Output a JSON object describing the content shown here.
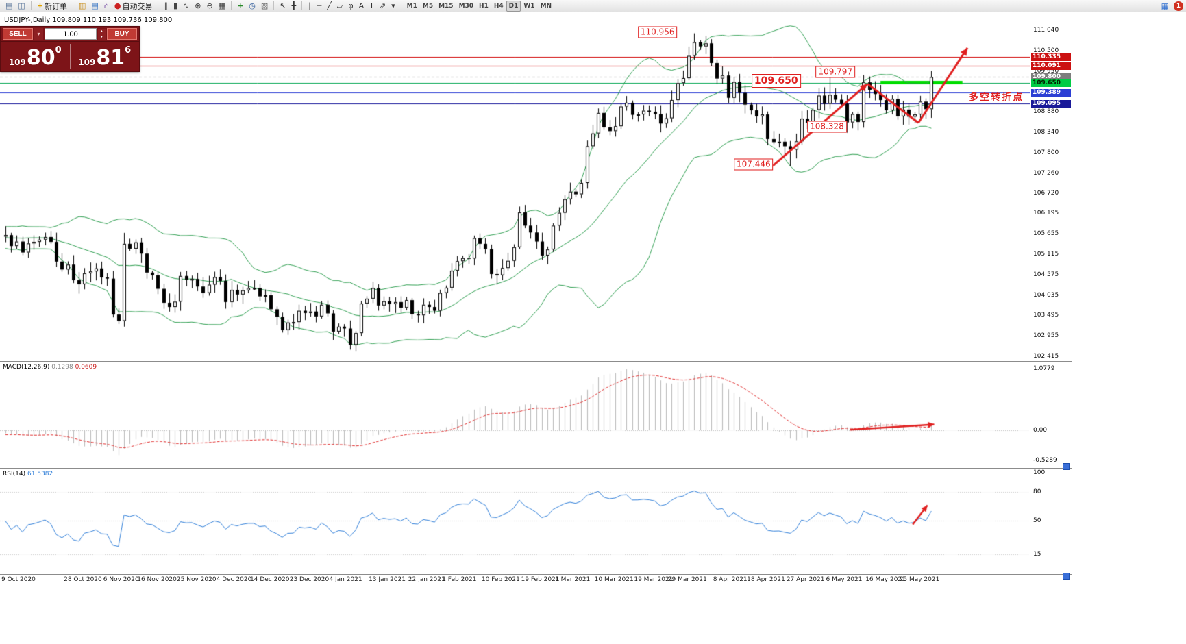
{
  "window": {
    "title": "USDJPY-,Daily  109.809 110.193 109.736 109.800"
  },
  "toolbar": {
    "groups": [
      {
        "buttons": [
          {
            "name": "new-chart-button",
            "glyph": "▤",
            "color": "#5f7a9d"
          },
          {
            "name": "profiles-button",
            "glyph": "◫",
            "color": "#5f7a9d"
          }
        ]
      },
      {
        "buttons": [
          {
            "name": "new-order-button",
            "glyph": "+",
            "glyph_color": "#e0a400",
            "label": "新订单"
          }
        ]
      },
      {
        "buttons": [
          {
            "name": "market-watch-button",
            "glyph": "▥",
            "color": "#c98f1e"
          },
          {
            "name": "data-window-button",
            "glyph": "▤",
            "color": "#3b77c4"
          },
          {
            "name": "navigator-button",
            "glyph": "⌂",
            "color": "#7a52a8"
          },
          {
            "name": "autotrading-button",
            "glyph": "●",
            "glyph_color": "#cc2222",
            "label": "自动交易"
          }
        ]
      },
      {
        "buttons": [
          {
            "name": "bar-chart-button",
            "glyph": "∥",
            "color": "#444444"
          },
          {
            "name": "candlestick-chart-button",
            "glyph": "▮",
            "color": "#444444"
          },
          {
            "name": "line-chart-button",
            "glyph": "∿",
            "color": "#444444"
          },
          {
            "name": "zoom-in-button",
            "glyph": "⊕",
            "color": "#444444"
          },
          {
            "name": "zoom-out-button",
            "glyph": "⊖",
            "color": "#444444"
          },
          {
            "name": "tile-windows-button",
            "glyph": "▦",
            "color": "#444444"
          }
        ]
      },
      {
        "buttons": [
          {
            "name": "add-indicator-button",
            "glyph": "+",
            "glyph_color": "#2a8a2a"
          },
          {
            "name": "time-period-button",
            "glyph": "◷",
            "color": "#35609e"
          },
          {
            "name": "template-button",
            "glyph": "▧",
            "color": "#666666"
          }
        ]
      },
      {
        "buttons": [
          {
            "name": "cursor-button",
            "glyph": "↖",
            "color": "#333333"
          },
          {
            "name": "crosshair-button",
            "glyph": "╋",
            "color": "#333333"
          }
        ]
      },
      {
        "buttons": [
          {
            "name": "vertical-line-button",
            "glyph": "∣",
            "color": "#333333"
          },
          {
            "name": "horizontal-line-button",
            "glyph": "─",
            "color": "#333333"
          },
          {
            "name": "trendline-button",
            "glyph": "╱",
            "color": "#333333"
          },
          {
            "name": "channel-button",
            "glyph": "▱",
            "color": "#333333"
          },
          {
            "name": "fibonacci-button",
            "glyph": "φ",
            "color": "#333333"
          },
          {
            "name": "text-button",
            "glyph": "A",
            "color": "#333333"
          },
          {
            "name": "label-button",
            "glyph": "T",
            "color": "#333333"
          },
          {
            "name": "arrows-tool-button",
            "glyph": "⇗",
            "color": "#333333"
          },
          {
            "name": "shapes-dropdown",
            "glyph": "▾",
            "color": "#333333"
          }
        ]
      },
      {
        "buttons": [
          {
            "name": "timeframe-m1",
            "label": "M1",
            "small": true
          },
          {
            "name": "timeframe-m5",
            "label": "M5",
            "small": true
          },
          {
            "name": "timeframe-m15",
            "label": "M15",
            "small": true
          },
          {
            "name": "timeframe-m30",
            "label": "M30",
            "small": true
          },
          {
            "name": "timeframe-h1",
            "label": "H1",
            "small": true
          },
          {
            "name": "timeframe-h4",
            "label": "H4",
            "small": true
          },
          {
            "name": "timeframe-d1",
            "label": "D1",
            "small": true,
            "active": true
          },
          {
            "name": "timeframe-w1",
            "label": "W1",
            "small": true
          },
          {
            "name": "timeframe-mn",
            "label": "MN",
            "small": true
          }
        ]
      }
    ],
    "right_buttons": [
      {
        "name": "layout-button",
        "glyph": "▦",
        "color": "#2f6fd0"
      },
      {
        "name": "notification-badge",
        "glyph": "1",
        "bg": "#d03020",
        "color": "#ffffff"
      }
    ]
  },
  "trade_panel": {
    "sell_label": "SELL",
    "buy_label": "BUY",
    "volume": "1.00",
    "sell_price_big": "109",
    "sell_price_main": "80",
    "sell_price_sup": "0",
    "buy_price_big": "109",
    "buy_price_main": "81",
    "buy_price_sup": "6"
  },
  "chart_data": [
    {
      "type": "candlestick",
      "symbol": "USDJPY-",
      "timeframe": "Daily",
      "ohlc_text": "109.809 110.193 109.736 109.800",
      "ylim": [
        102.29,
        111.51
      ],
      "y_ticks": [
        "111.040",
        "110.500",
        "109.950",
        "108.880",
        "108.340",
        "107.800",
        "107.260",
        "106.720",
        "106.195",
        "105.655",
        "105.115",
        "104.575",
        "104.035",
        "103.495",
        "102.955",
        "102.415"
      ],
      "price_lines": [
        {
          "price": 110.335,
          "label": "110.335",
          "color": "#d00000",
          "dash": false,
          "badge_bg": "#cc1111",
          "badge_fg": "#ffffff"
        },
        {
          "price": 110.091,
          "label": "110.091",
          "color": "#d00000",
          "dash": false,
          "badge_bg": "#cc1111",
          "badge_fg": "#ffffff"
        },
        {
          "price": 109.8,
          "label": "109.800",
          "color": "#aaaaaa",
          "dash": true,
          "badge_bg": "#7d7d7d",
          "badge_fg": "#ffffff"
        },
        {
          "price": 109.65,
          "label": "109.650",
          "color": "#00a651",
          "dash": false,
          "badge_bg": "#00cc44",
          "badge_fg": "#002200"
        },
        {
          "price": 109.389,
          "label": "109.389",
          "color": "#2c3fd4",
          "dash": false,
          "badge_bg": "#2c3fd4",
          "badge_fg": "#ffffff"
        },
        {
          "price": 109.095,
          "label": "109.095",
          "color": "#15159a",
          "dash": false,
          "badge_bg": "#1a1a99",
          "badge_fg": "#ffffff"
        }
      ],
      "green_segment": {
        "price": 109.655,
        "i1": 155,
        "i2": 169.5,
        "color": "#00dd00",
        "width": 5
      },
      "bollinger": {
        "period": 20,
        "deviation": 2,
        "color": "#2e9e50"
      },
      "x_labels": [
        {
          "i": 0,
          "t": "9 Oct 2020"
        },
        {
          "i": 13,
          "t": "28 Oct 2020"
        },
        {
          "i": 20,
          "t": "6 Nov 2020"
        },
        {
          "i": 26,
          "t": "16 Nov 2020"
        },
        {
          "i": 33,
          "t": "25 Nov 2020"
        },
        {
          "i": 40,
          "t": "4 Dec 2020"
        },
        {
          "i": 46,
          "t": "14 Dec 2020"
        },
        {
          "i": 53,
          "t": "23 Dec 2020"
        },
        {
          "i": 60,
          "t": "4 Jan 2021"
        },
        {
          "i": 67,
          "t": "13 Jan 2021"
        },
        {
          "i": 74,
          "t": "22 Jan 2021"
        },
        {
          "i": 80,
          "t": "1 Feb 2021"
        },
        {
          "i": 87,
          "t": "10 Feb 2021"
        },
        {
          "i": 94,
          "t": "19 Feb 2021"
        },
        {
          "i": 100,
          "t": "1 Mar 2021"
        },
        {
          "i": 107,
          "t": "10 Mar 2021"
        },
        {
          "i": 114,
          "t": "19 Mar 2021"
        },
        {
          "i": 120,
          "t": "29 Mar 2021"
        },
        {
          "i": 128,
          "t": "8 Apr 2021"
        },
        {
          "i": 134,
          "t": "18 Apr 2021"
        },
        {
          "i": 141,
          "t": "27 Apr 2021"
        },
        {
          "i": 148,
          "t": "6 May 2021"
        },
        {
          "i": 155,
          "t": "16 May 2021"
        },
        {
          "i": 161,
          "t": "25 May 2021"
        }
      ],
      "annotations": [
        {
          "text": "110.956",
          "i": 115.5,
          "p": 110.98,
          "kind": "box"
        },
        {
          "text": "109.650",
          "i": 136.5,
          "p": 109.69,
          "kind": "box-big"
        },
        {
          "text": "109.797",
          "i": 147,
          "p": 109.93,
          "kind": "box"
        },
        {
          "text": "108.328",
          "i": 145.5,
          "p": 108.49,
          "kind": "box"
        },
        {
          "text": "107.446",
          "i": 132.5,
          "p": 107.49,
          "kind": "box"
        },
        {
          "text": "多空转折点",
          "i": 175.5,
          "p": 109.25,
          "kind": "text"
        }
      ],
      "arrows": [
        {
          "i1": 135.9,
          "p1": 107.45,
          "i2": 152.7,
          "p2": 109.62,
          "head": true
        },
        {
          "i1": 152.7,
          "p1": 109.62,
          "i2": 161.7,
          "p2": 108.59,
          "head": false
        },
        {
          "i1": 161.7,
          "p1": 108.59,
          "i2": 170.4,
          "p2": 110.57,
          "head": true
        }
      ],
      "pre_closes": [
        106.0,
        105.9,
        106.1,
        106.4,
        106.6,
        106.9,
        106.8,
        106.6,
        106.5,
        106.3,
        106.1,
        105.9,
        106.2,
        106.1,
        105.9,
        105.7,
        105.5,
        105.3,
        105.4,
        105.5,
        105.7,
        105.6,
        105.4,
        105.3,
        105.2,
        105.4,
        105.5,
        105.6,
        105.7,
        105.8,
        105.7,
        105.6,
        105.5,
        105.5,
        105.6,
        105.7,
        105.7,
        105.6,
        105.5,
        105.58
      ],
      "closes": [
        105.62,
        105.33,
        105.45,
        105.16,
        105.4,
        105.44,
        105.5,
        105.57,
        105.44,
        104.92,
        104.71,
        104.84,
        104.43,
        104.32,
        104.61,
        104.66,
        104.74,
        104.5,
        104.47,
        103.52,
        103.35,
        105.39,
        105.26,
        105.43,
        105.13,
        104.63,
        104.56,
        104.2,
        103.83,
        103.72,
        103.86,
        104.54,
        104.44,
        104.46,
        104.26,
        104.09,
        104.31,
        104.51,
        104.41,
        103.85,
        104.17,
        104.05,
        104.16,
        104.22,
        104.22,
        104.0,
        104.03,
        103.66,
        103.46,
        103.11,
        103.31,
        103.32,
        103.62,
        103.56,
        103.6,
        103.47,
        103.78,
        103.55,
        103.07,
        103.2,
        103.15,
        102.72,
        103.03,
        103.81,
        103.94,
        104.22,
        103.76,
        103.87,
        103.8,
        103.85,
        103.7,
        103.9,
        103.53,
        103.5,
        103.78,
        103.72,
        103.62,
        104.09,
        104.23,
        104.68,
        104.93,
        105.01,
        105.0,
        105.54,
        105.39,
        105.25,
        104.59,
        104.56,
        104.75,
        104.94,
        105.3,
        106.22,
        105.87,
        105.69,
        105.45,
        105.08,
        105.24,
        105.87,
        106.21,
        106.57,
        106.77,
        106.7,
        107.0,
        107.97,
        108.31,
        108.85,
        108.47,
        108.37,
        108.5,
        109.02,
        109.12,
        108.8,
        108.81,
        108.91,
        108.88,
        108.82,
        108.57,
        108.71,
        109.19,
        109.64,
        109.77,
        110.36,
        110.72,
        110.61,
        110.69,
        110.17,
        109.76,
        109.84,
        109.25,
        109.67,
        109.38,
        109.07,
        108.92,
        108.76,
        108.81,
        108.16,
        108.08,
        108.09,
        107.97,
        107.88,
        108.1,
        108.7,
        108.59,
        108.93,
        109.31,
        109.09,
        109.33,
        109.2,
        109.09,
        108.6,
        108.82,
        108.61,
        109.66,
        109.46,
        109.35,
        109.19,
        108.92,
        109.22,
        108.76,
        108.94,
        108.75,
        108.81,
        109.15,
        108.95,
        109.8
      ],
      "wick_overrides": {
        "21": {
          "high": 105.68,
          "low": 103.2
        },
        "122": {
          "high": 110.956
        },
        "139": {
          "low": 107.446
        },
        "146": {
          "high": 109.797
        },
        "149": {
          "low": 108.328
        },
        "164": {
          "high": 109.96,
          "low": 108.72
        }
      }
    },
    {
      "type": "macd",
      "label": "MACD(12,26,9)",
      "values": [
        "0.1298",
        "0.0609"
      ],
      "params": [
        12,
        26,
        9
      ],
      "ylim": [
        -0.659,
        1.209
      ],
      "y_ticks": [
        "1.0779",
        "0.00",
        "-0.5289"
      ],
      "y_tick_values": [
        1.0779,
        0.0,
        -0.5289
      ],
      "histogram_color": "#b8b8b8",
      "signal_color": "#e03030",
      "arrow": {
        "i1": 149.6,
        "v1": 0.01,
        "i2": 164.5,
        "v2": 0.1
      }
    },
    {
      "type": "rsi",
      "label": "RSI(14)",
      "value": "61.5382",
      "period": 14,
      "ylim": [
        -5.7,
        105
      ],
      "y_ticks": [
        "100",
        "80",
        "50",
        "15"
      ],
      "y_tick_values": [
        100,
        80,
        50,
        15
      ],
      "levels": [
        80,
        50,
        15
      ],
      "line_color": "#2f7ed8",
      "arrow": {
        "i1": 160.7,
        "v1": 46,
        "i2": 163.3,
        "v2": 66
      }
    }
  ]
}
